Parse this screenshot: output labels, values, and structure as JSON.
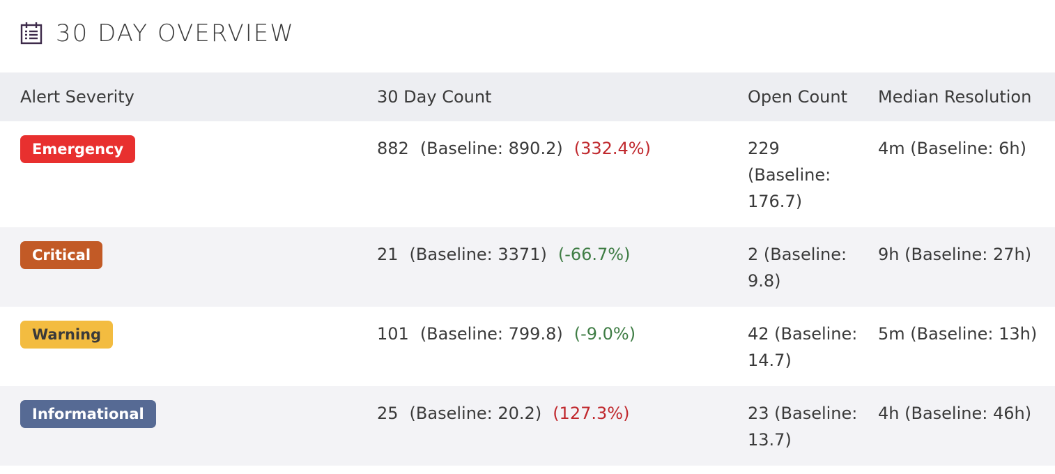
{
  "header": {
    "title": "30 DAY OVERVIEW",
    "icon": "calendar-icon"
  },
  "table": {
    "columns": [
      "Alert Severity",
      "30 Day Count",
      "Open Count",
      "Median Resolution"
    ],
    "rows": [
      {
        "severity": "Emergency",
        "severity_color": "#e8302f",
        "count": "882",
        "count_baseline": "(Baseline: 890.2)",
        "count_change": "(332.4%)",
        "change_direction": "up",
        "open": "229 (Baseline: 176.7)",
        "median": "4m (Baseline: 6h)"
      },
      {
        "severity": "Critical",
        "severity_color": "#c25a26",
        "count": "21",
        "count_baseline": "(Baseline: 3371)",
        "count_change": "(-66.7%)",
        "change_direction": "down",
        "open": "2 (Baseline: 9.8)",
        "median": "9h (Baseline: 27h)"
      },
      {
        "severity": "Warning",
        "severity_color": "#f3bc40",
        "count": "101",
        "count_baseline": "(Baseline: 799.8)",
        "count_change": "(-9.0%)",
        "change_direction": "down",
        "open": "42 (Baseline: 14.7)",
        "median": "5m (Baseline: 13h)"
      },
      {
        "severity": "Informational",
        "severity_color": "#566a94",
        "count": "25",
        "count_baseline": "(Baseline: 20.2)",
        "count_change": "(127.3%)",
        "change_direction": "up",
        "open": "23 (Baseline: 13.7)",
        "median": "4h (Baseline: 46h)"
      }
    ]
  },
  "colors": {
    "increase": "#c0282d",
    "decrease": "#3f7d45",
    "header_bg": "#edeef2"
  }
}
